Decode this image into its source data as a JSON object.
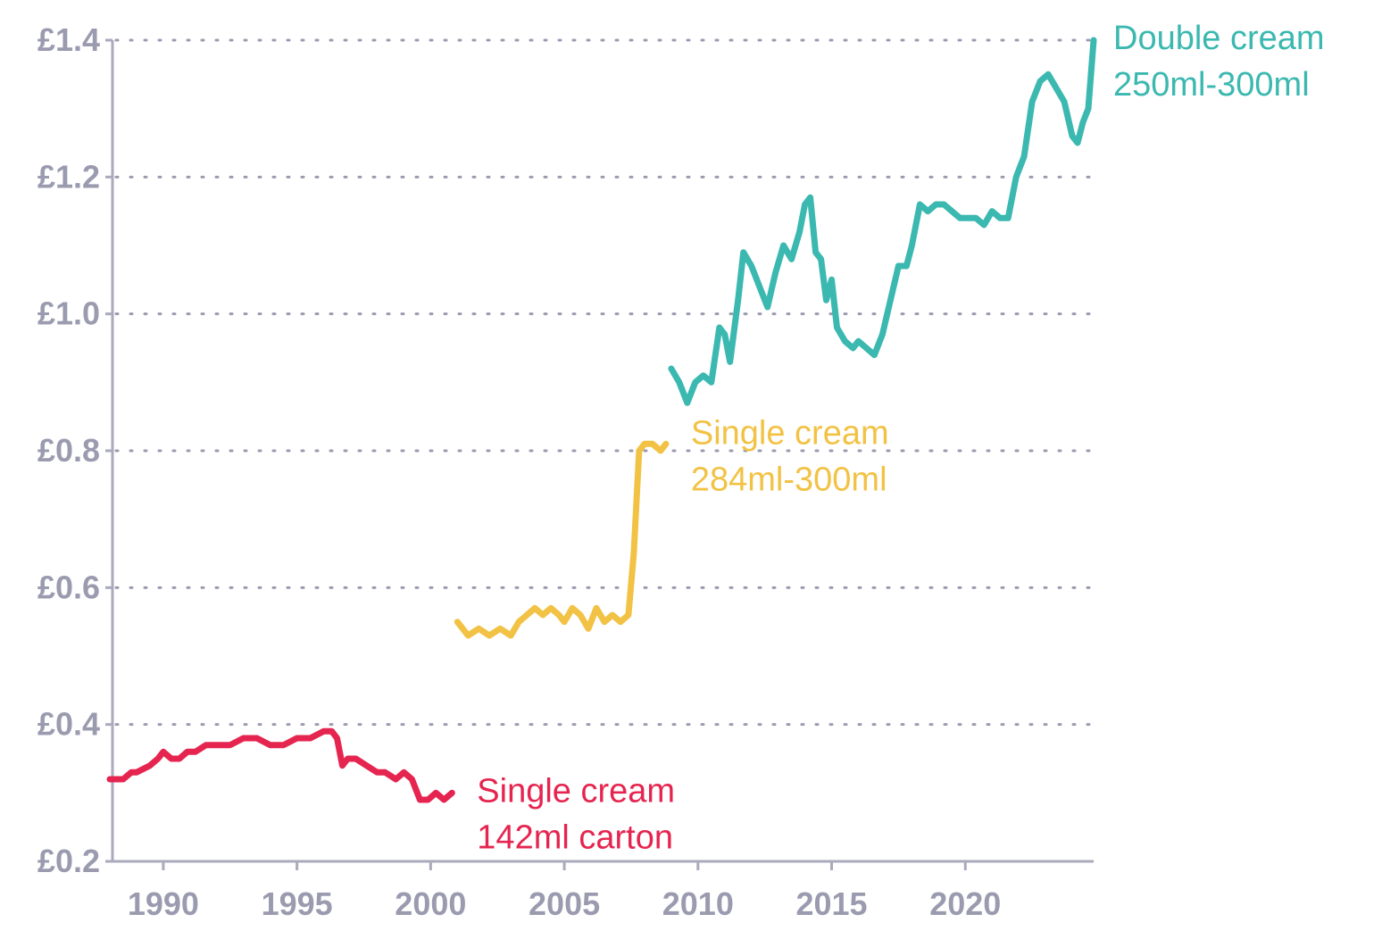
{
  "chart_data": {
    "type": "line",
    "title": "",
    "xlabel": "",
    "ylabel": "",
    "xlim": [
      1988.1,
      2024.8
    ],
    "ylim": [
      0.2,
      1.4
    ],
    "x_ticks": [
      1990,
      1995,
      2000,
      2005,
      2010,
      2015,
      2020
    ],
    "x_tick_labels": [
      "1990",
      "1995",
      "2000",
      "2005",
      "2010",
      "2015",
      "2020"
    ],
    "y_ticks": [
      0.2,
      0.4,
      0.6,
      0.8,
      1.0,
      1.2,
      1.4
    ],
    "y_tick_labels": [
      "£0.2",
      "£0.4",
      "£0.6",
      "£0.8",
      "£1.0",
      "£1.2",
      "£1.4"
    ],
    "grid": "horizontal dotted",
    "legend": "direct labels at line ends",
    "series": [
      {
        "name": "Single cream 142ml carton",
        "label_lines": [
          "Single cream",
          "142ml carton"
        ],
        "color": "#e5254f",
        "x": [
          1988.0,
          1988.5,
          1988.8,
          1989.0,
          1989.5,
          1989.8,
          1990.0,
          1990.3,
          1990.6,
          1990.9,
          1991.2,
          1991.6,
          1992.0,
          1992.5,
          1993.0,
          1993.5,
          1994.0,
          1994.5,
          1995.0,
          1995.5,
          1996.0,
          1996.3,
          1996.5,
          1996.7,
          1996.9,
          1997.2,
          1997.6,
          1998.0,
          1998.3,
          1998.7,
          1999.0,
          1999.3,
          1999.6,
          1999.9,
          2000.2,
          2000.5,
          2000.8
        ],
        "values": [
          0.32,
          0.32,
          0.33,
          0.33,
          0.34,
          0.35,
          0.36,
          0.35,
          0.35,
          0.36,
          0.36,
          0.37,
          0.37,
          0.37,
          0.38,
          0.38,
          0.37,
          0.37,
          0.38,
          0.38,
          0.39,
          0.39,
          0.38,
          0.34,
          0.35,
          0.35,
          0.34,
          0.33,
          0.33,
          0.32,
          0.33,
          0.32,
          0.29,
          0.29,
          0.3,
          0.29,
          0.3
        ]
      },
      {
        "name": "Single cream 284ml-300ml",
        "label_lines": [
          "Single cream",
          "284ml-300ml"
        ],
        "color": "#f2c244",
        "x": [
          2001.0,
          2001.4,
          2001.8,
          2002.2,
          2002.6,
          2003.0,
          2003.3,
          2003.6,
          2003.9,
          2004.2,
          2004.5,
          2004.8,
          2005.0,
          2005.3,
          2005.6,
          2005.9,
          2006.2,
          2006.5,
          2006.8,
          2007.1,
          2007.4,
          2007.6,
          2007.8,
          2008.0,
          2008.3,
          2008.6,
          2008.8
        ],
        "values": [
          0.55,
          0.53,
          0.54,
          0.53,
          0.54,
          0.53,
          0.55,
          0.56,
          0.57,
          0.56,
          0.57,
          0.56,
          0.55,
          0.57,
          0.56,
          0.54,
          0.57,
          0.55,
          0.56,
          0.55,
          0.56,
          0.65,
          0.8,
          0.81,
          0.81,
          0.8,
          0.81
        ]
      },
      {
        "name": "Double cream 250ml-300ml",
        "label_lines": [
          "Double cream",
          "250ml-300ml"
        ],
        "color": "#3bb8b0",
        "x": [
          2009.0,
          2009.3,
          2009.6,
          2009.9,
          2010.2,
          2010.5,
          2010.8,
          2011.0,
          2011.2,
          2011.5,
          2011.7,
          2012.0,
          2012.3,
          2012.6,
          2012.9,
          2013.2,
          2013.5,
          2013.8,
          2014.0,
          2014.2,
          2014.4,
          2014.6,
          2014.8,
          2015.0,
          2015.2,
          2015.5,
          2015.8,
          2016.0,
          2016.3,
          2016.6,
          2016.9,
          2017.2,
          2017.5,
          2017.8,
          2018.0,
          2018.3,
          2018.6,
          2018.9,
          2019.2,
          2019.5,
          2019.8,
          2020.1,
          2020.4,
          2020.7,
          2021.0,
          2021.3,
          2021.6,
          2021.9,
          2022.2,
          2022.5,
          2022.8,
          2023.1,
          2023.4,
          2023.7,
          2024.0,
          2024.2,
          2024.4,
          2024.6,
          2024.8
        ],
        "values": [
          0.92,
          0.9,
          0.87,
          0.9,
          0.91,
          0.9,
          0.98,
          0.97,
          0.93,
          1.02,
          1.09,
          1.07,
          1.04,
          1.01,
          1.06,
          1.1,
          1.08,
          1.12,
          1.16,
          1.17,
          1.09,
          1.08,
          1.02,
          1.05,
          0.98,
          0.96,
          0.95,
          0.96,
          0.95,
          0.94,
          0.97,
          1.02,
          1.07,
          1.07,
          1.1,
          1.16,
          1.15,
          1.16,
          1.16,
          1.15,
          1.14,
          1.14,
          1.14,
          1.13,
          1.15,
          1.14,
          1.14,
          1.2,
          1.23,
          1.31,
          1.34,
          1.35,
          1.33,
          1.31,
          1.26,
          1.25,
          1.28,
          1.3,
          1.4
        ]
      }
    ]
  }
}
